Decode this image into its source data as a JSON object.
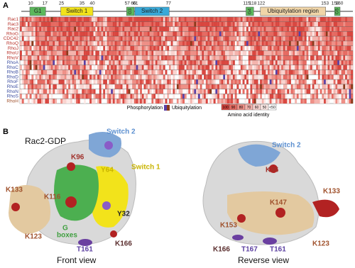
{
  "panel_labels": [
    "A",
    "B"
  ],
  "panel_a": {
    "positions": [
      10,
      17,
      25,
      35,
      40,
      57,
      60,
      61,
      77,
      115,
      118,
      122,
      153,
      158,
      160
    ],
    "regions": [
      "G1",
      "Switch 1",
      "G3",
      "Switch 2",
      "G4",
      "Ubiquitylation region",
      "G5"
    ],
    "rows": [
      "Rac1",
      "Rac3",
      "Rac2",
      "RhoG",
      "CDC42",
      "RhoQ",
      "RhoJ",
      "RhoU",
      "RhoV",
      "RhoA",
      "RhoC",
      "RhoB",
      "RhoD",
      "RhoF",
      "RhoE",
      "RhoN",
      "RhoS",
      "RhoH"
    ],
    "legend": {
      "phosphorylation": "Phosphorylation",
      "ubiquitylation": "Ubiquitylation",
      "scale": [
        "100",
        "90",
        "80",
        "70",
        "60",
        "50",
        "<50"
      ],
      "scale_title": "Amino acid identity"
    }
  },
  "panel_b": {
    "title": "Rac2-GDP",
    "front_labels": [
      "Switch 2",
      "K96",
      "Y64",
      "Switch 1",
      "K133",
      "K116",
      "Y32",
      "G",
      "boxes",
      "K123",
      "T161",
      "K166"
    ],
    "reverse_labels": [
      "Switch 2",
      "K96",
      "K147",
      "K133",
      "K153",
      "K166",
      "T167",
      "T161",
      "K123"
    ],
    "front_caption": "Front view",
    "reverse_caption": "Reverse view"
  }
}
